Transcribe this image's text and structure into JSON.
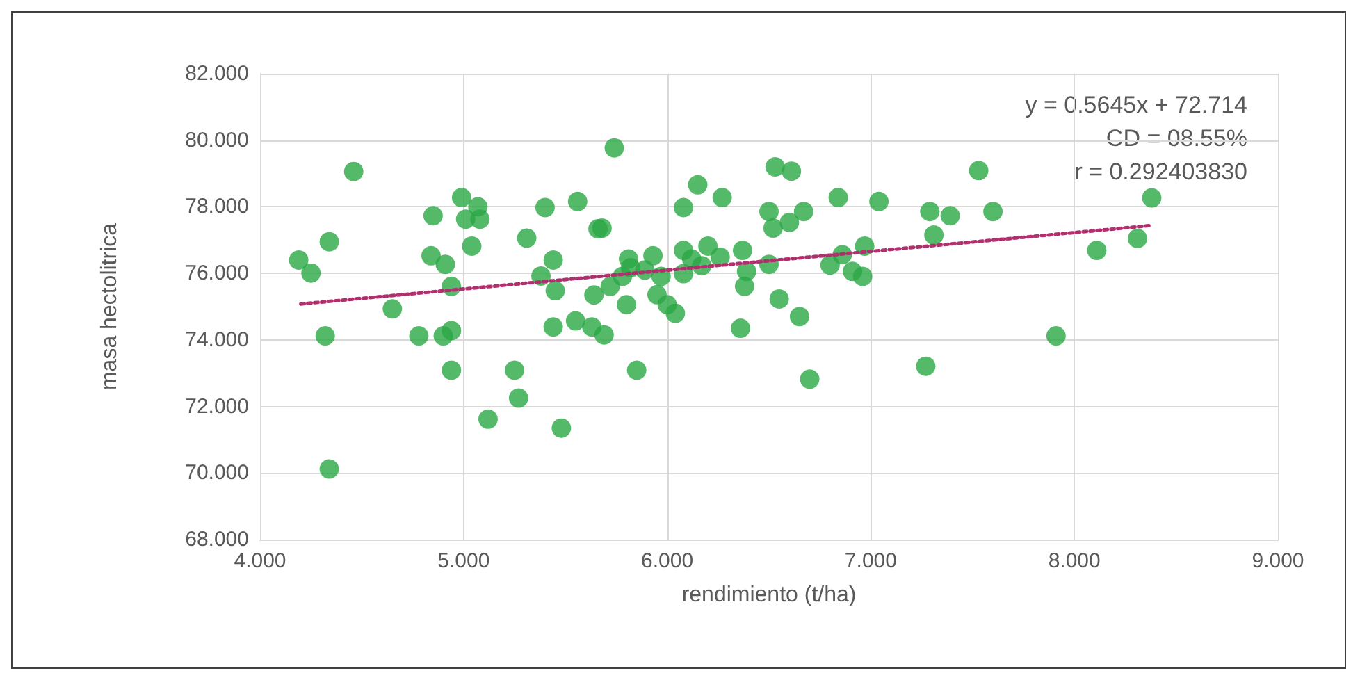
{
  "chart_data": {
    "type": "scatter",
    "xlabel": "rendimiento (t/ha)",
    "ylabel": "masa hectolitrica",
    "xlim": [
      4,
      9
    ],
    "xticks": [
      {
        "value": 4,
        "label": "4.000"
      },
      {
        "value": 5,
        "label": "5.000"
      },
      {
        "value": 6,
        "label": "6.000"
      },
      {
        "value": 7,
        "label": "7.000"
      },
      {
        "value": 8,
        "label": "8.000"
      },
      {
        "value": 9,
        "label": "9.000"
      }
    ],
    "ylim": [
      68,
      82
    ],
    "yticks": [
      {
        "value": 68,
        "label": "68.000"
      },
      {
        "value": 70,
        "label": "70.000"
      },
      {
        "value": 72,
        "label": "72.000"
      },
      {
        "value": 74,
        "label": "74.000"
      },
      {
        "value": 76,
        "label": "76.000"
      },
      {
        "value": 78,
        "label": "78.000"
      },
      {
        "value": 80,
        "label": "80.000"
      },
      {
        "value": 82,
        "label": "82.000"
      }
    ],
    "grid": true,
    "annotations": [
      "y = 0.5645x + 72.714",
      "CD = 08.55%",
      "r = 0.292403830"
    ],
    "series": [
      {
        "color": "#2aa845",
        "marker": "circle",
        "x": [
          4.46,
          4.99,
          5.07,
          4.85,
          5.01,
          5.08,
          5.4,
          5.56,
          4.34,
          5.31,
          5.04,
          4.19,
          4.25,
          4.84,
          4.91,
          5.44,
          5.38,
          4.94,
          5.45,
          4.65,
          4.32,
          4.78,
          4.9,
          4.94,
          5.44,
          5.55,
          5.63,
          4.94,
          5.25,
          5.27,
          5.12,
          5.48,
          4.34,
          5.64,
          5.66,
          5.69,
          5.74,
          5.68,
          5.81,
          5.93,
          5.82,
          5.89,
          5.97,
          5.72,
          5.78,
          5.8,
          5.95,
          6.0,
          6.04,
          5.85,
          6.08,
          6.15,
          6.27,
          6.08,
          6.12,
          6.2,
          6.26,
          6.17,
          6.08,
          6.37,
          6.39,
          6.38,
          6.5,
          6.55,
          6.65,
          6.36,
          6.7,
          6.53,
          6.61,
          6.84,
          7.04,
          6.5,
          6.67,
          6.6,
          6.52,
          6.8,
          6.86,
          6.97,
          6.91,
          6.96,
          7.29,
          7.31,
          7.27,
          7.39,
          7.53,
          7.6,
          7.91,
          8.11,
          8.31,
          8.38
        ],
        "values": [
          79.06,
          78.28,
          78.0,
          77.73,
          77.63,
          77.63,
          77.98,
          78.16,
          76.95,
          77.06,
          76.82,
          76.4,
          76.01,
          76.53,
          76.27,
          76.4,
          75.92,
          75.61,
          75.48,
          74.93,
          74.12,
          74.12,
          74.12,
          74.28,
          74.39,
          74.57,
          74.39,
          73.09,
          73.09,
          72.25,
          71.62,
          71.35,
          70.12,
          75.35,
          77.34,
          74.15,
          79.77,
          77.36,
          76.43,
          76.53,
          76.17,
          76.1,
          75.91,
          75.61,
          75.91,
          75.06,
          75.36,
          75.06,
          74.8,
          73.09,
          77.98,
          78.66,
          78.28,
          76.69,
          76.43,
          76.82,
          76.49,
          76.23,
          75.99,
          76.69,
          76.06,
          75.61,
          76.27,
          75.23,
          74.7,
          74.35,
          72.82,
          79.2,
          79.07,
          78.28,
          78.16,
          77.86,
          77.86,
          77.53,
          77.36,
          76.25,
          76.56,
          76.82,
          76.06,
          75.91,
          77.86,
          77.15,
          73.21,
          77.73,
          79.09,
          77.86,
          74.12,
          76.69,
          77.05,
          78.27
        ]
      },
      {
        "type": "line",
        "color": "#b0306e",
        "line_style": "dotted",
        "marker": "none",
        "x": [
          4.2,
          8.38
        ],
        "values": [
          75.08,
          77.44
        ]
      }
    ]
  }
}
